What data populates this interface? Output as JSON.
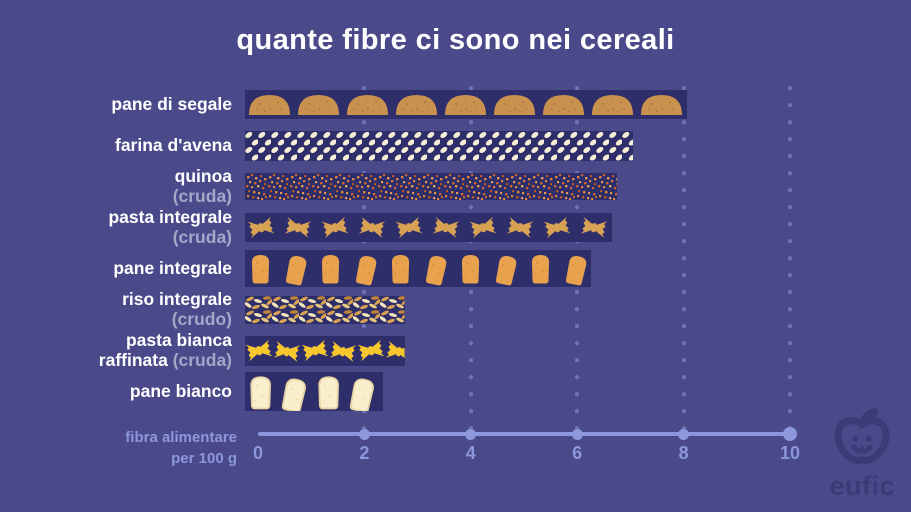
{
  "title": "quante fibre ci sono nei cereali",
  "colors": {
    "background": "#4a4a8a",
    "bar_background": "#2e2e6a",
    "axis": "#8d97dc",
    "label": "#ffffff",
    "label_muted": "#a6a6cb",
    "logo": "#3b3b77",
    "rye_loaf": "#c9914e",
    "oat": "#f6eed6",
    "quinoa_orange": "#e0762e",
    "wholegrain_tan": "#d8a255",
    "bread_wholegrain": "#e8a14d",
    "pasta_yellow": "#f7c72e",
    "bread_white": "#f9efcc"
  },
  "axis": {
    "label_line1": "fibra alimentare",
    "label_line2": "per 100 g",
    "ticks": [
      0,
      2,
      4,
      6,
      8,
      10
    ],
    "max": 10
  },
  "logo": {
    "text": "eufic",
    "icon": "apple-face-icon"
  },
  "chart_data": {
    "type": "bar",
    "style": "pictogram",
    "orientation": "horizontal",
    "title": "quante fibre ci sono nei cereali",
    "xlabel": "fibra alimentare per 100 g",
    "xlim": [
      0,
      10
    ],
    "xticks": [
      0,
      2,
      4,
      6,
      8,
      10
    ],
    "grid": "dotted-vertical",
    "categories": [
      "pane di segale",
      "farina d'avena",
      "quinoa (cruda)",
      "pasta integrale (cruda)",
      "pane integrale",
      "riso integrale (crudo)",
      "pasta bianca raffinata (cruda)",
      "pane bianco"
    ],
    "values": [
      8.3,
      7.3,
      7.0,
      6.9,
      6.5,
      3.0,
      3.0,
      2.6
    ],
    "rows": [
      {
        "lines": [
          {
            "text": "pane di segale",
            "muted": ""
          }
        ],
        "value": 8.3,
        "icon": "rye-loaf"
      },
      {
        "lines": [
          {
            "text": "farina d'avena",
            "muted": ""
          }
        ],
        "value": 7.3,
        "icon": "oats"
      },
      {
        "lines": [
          {
            "text": "quinoa",
            "muted": ""
          },
          {
            "text": "",
            "muted": "(cruda)"
          }
        ],
        "value": 7.0,
        "icon": "quinoa"
      },
      {
        "lines": [
          {
            "text": "pasta integrale",
            "muted": ""
          },
          {
            "text": "",
            "muted": "(cruda)"
          }
        ],
        "value": 6.9,
        "icon": "farfalle-wholegrain"
      },
      {
        "lines": [
          {
            "text": "pane integrale",
            "muted": ""
          }
        ],
        "value": 6.5,
        "icon": "bread-wholegrain"
      },
      {
        "lines": [
          {
            "text": "riso integrale",
            "muted": ""
          },
          {
            "text": "",
            "muted": "(crudo)"
          }
        ],
        "value": 3.0,
        "icon": "rice"
      },
      {
        "lines": [
          {
            "text": "pasta bianca",
            "muted": ""
          },
          {
            "text": "raffinata ",
            "muted": "(cruda)"
          }
        ],
        "value": 3.0,
        "icon": "farfalle-white"
      },
      {
        "lines": [
          {
            "text": "pane bianco",
            "muted": ""
          }
        ],
        "value": 2.6,
        "icon": "bread-white"
      }
    ]
  }
}
